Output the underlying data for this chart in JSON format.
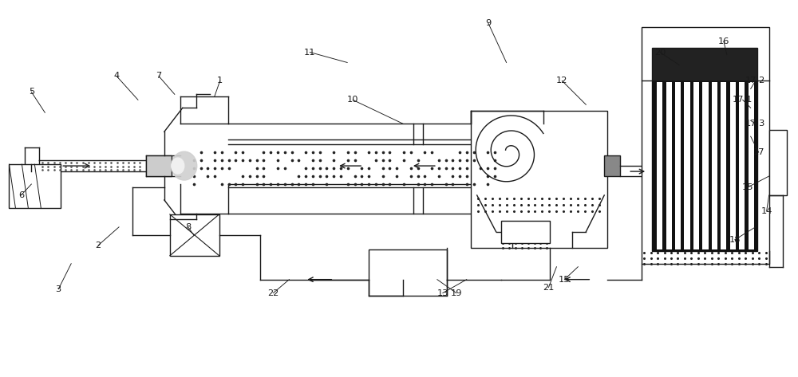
{
  "bg_color": "#ffffff",
  "lc": "#1a1a1a",
  "lw": 1.0,
  "fig_w": 10.0,
  "fig_h": 4.73
}
